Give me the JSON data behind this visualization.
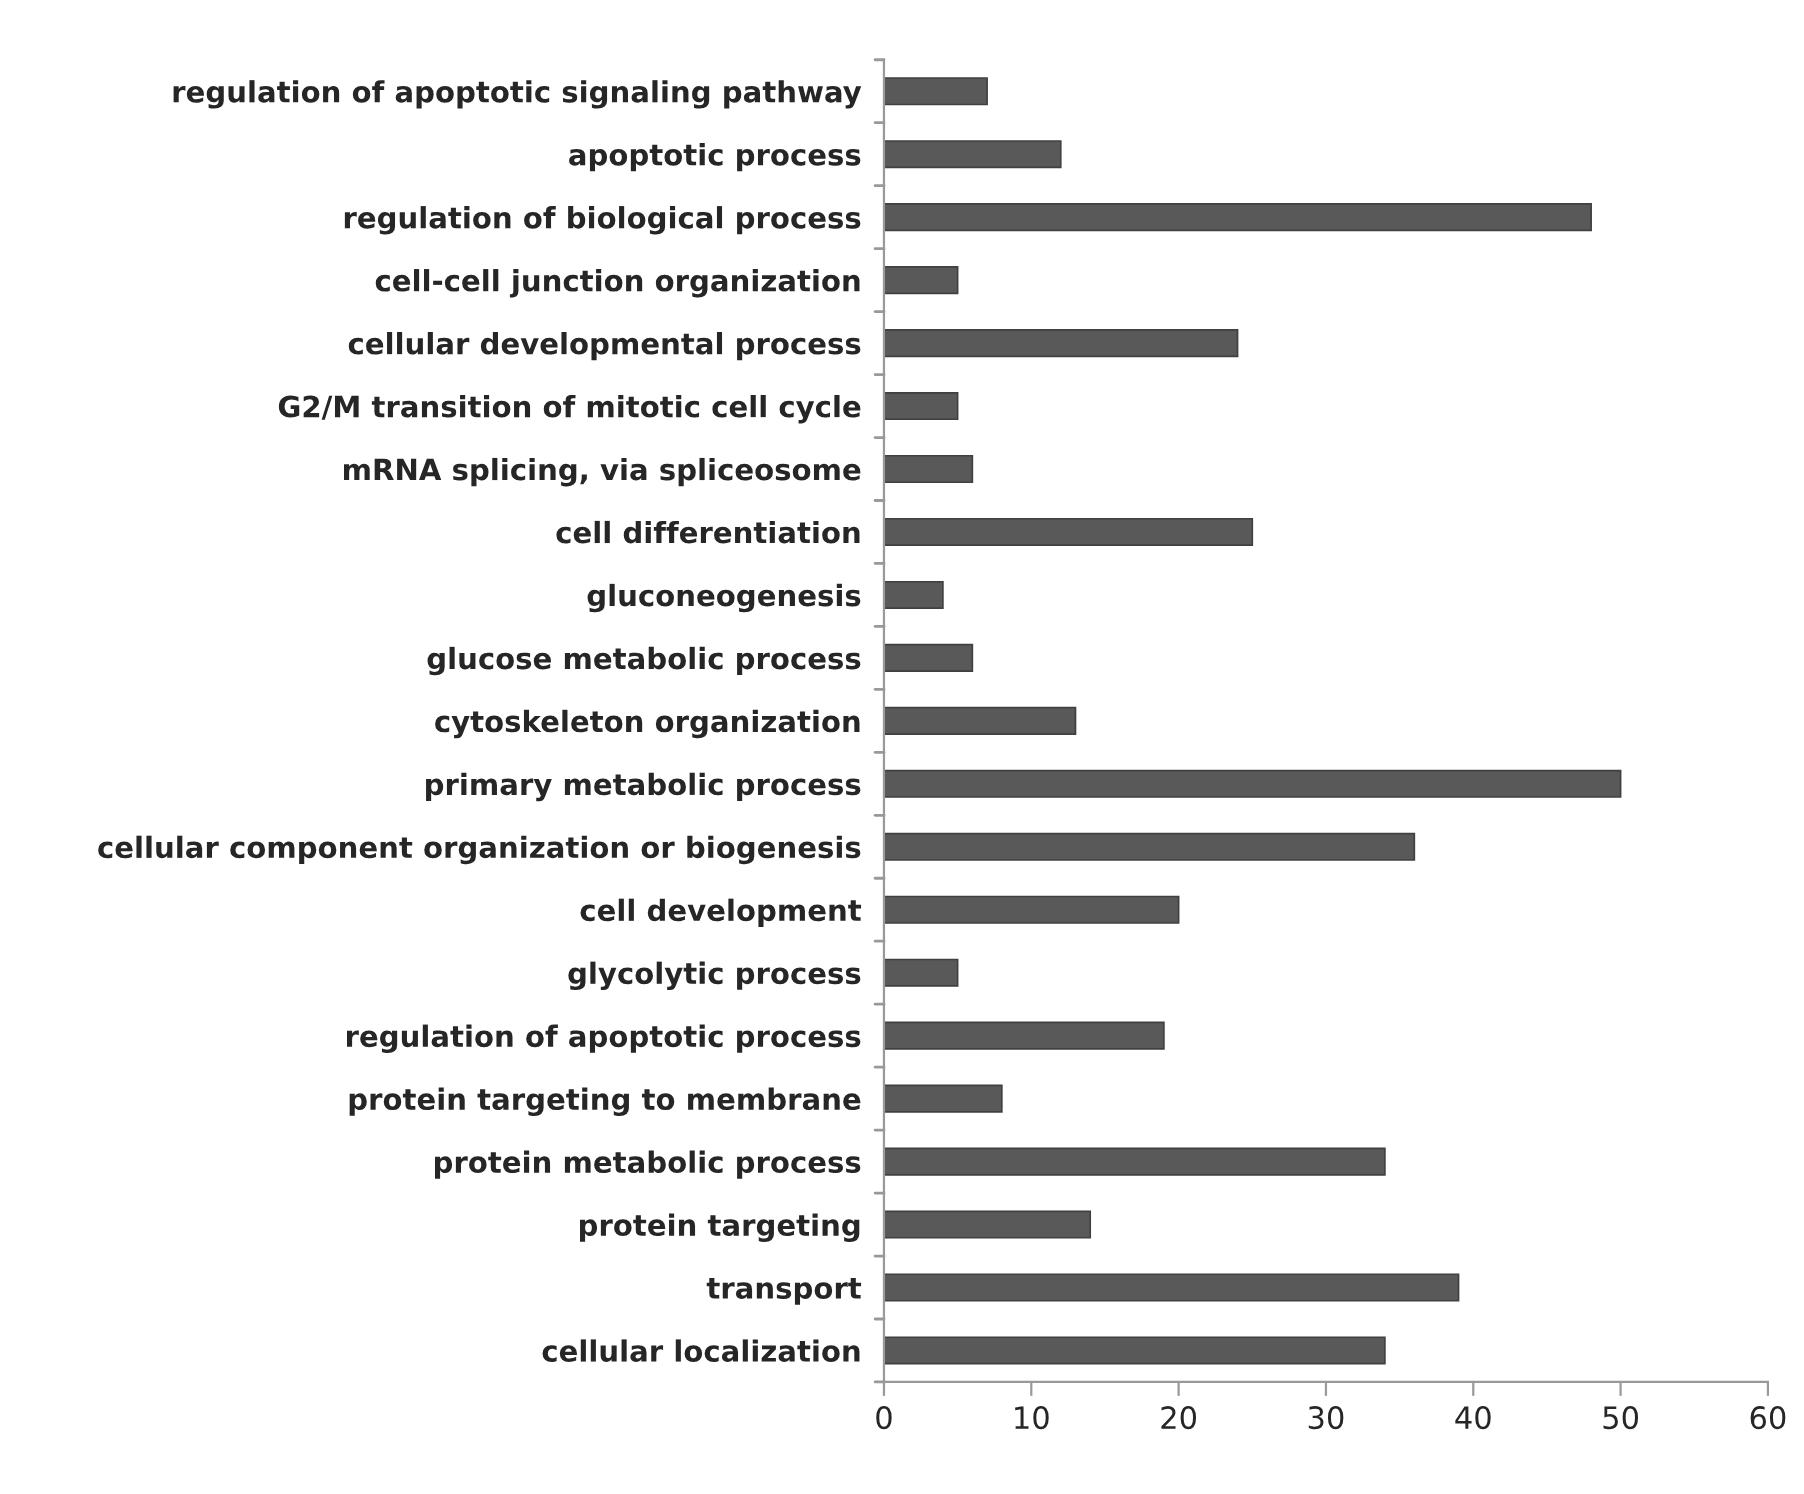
{
  "chart_data": {
    "type": "bar",
    "orientation": "horizontal",
    "categories": [
      "regulation of apoptotic signaling pathway",
      "apoptotic process",
      "regulation of biological process",
      "cell-cell junction organization",
      "cellular developmental process",
      "G2/M transition of mitotic cell cycle",
      "mRNA splicing, via spliceosome",
      "cell differentiation",
      "gluconeogenesis",
      "glucose metabolic process",
      "cytoskeleton organization",
      "primary metabolic process",
      "cellular component organization or biogenesis",
      "cell development",
      "glycolytic process",
      "regulation of apoptotic process",
      "protein targeting to membrane",
      "protein metabolic process",
      "protein targeting",
      "transport",
      "cellular localization"
    ],
    "values": [
      7,
      12,
      48,
      5,
      24,
      5,
      6,
      25,
      4,
      6,
      13,
      50,
      36,
      20,
      5,
      19,
      8,
      34,
      14,
      39,
      34
    ],
    "color": "#595959",
    "xlim": [
      0,
      60
    ],
    "xticks": [
      0,
      10,
      20,
      30,
      40,
      50,
      60
    ],
    "grid": false,
    "legend": false
  }
}
